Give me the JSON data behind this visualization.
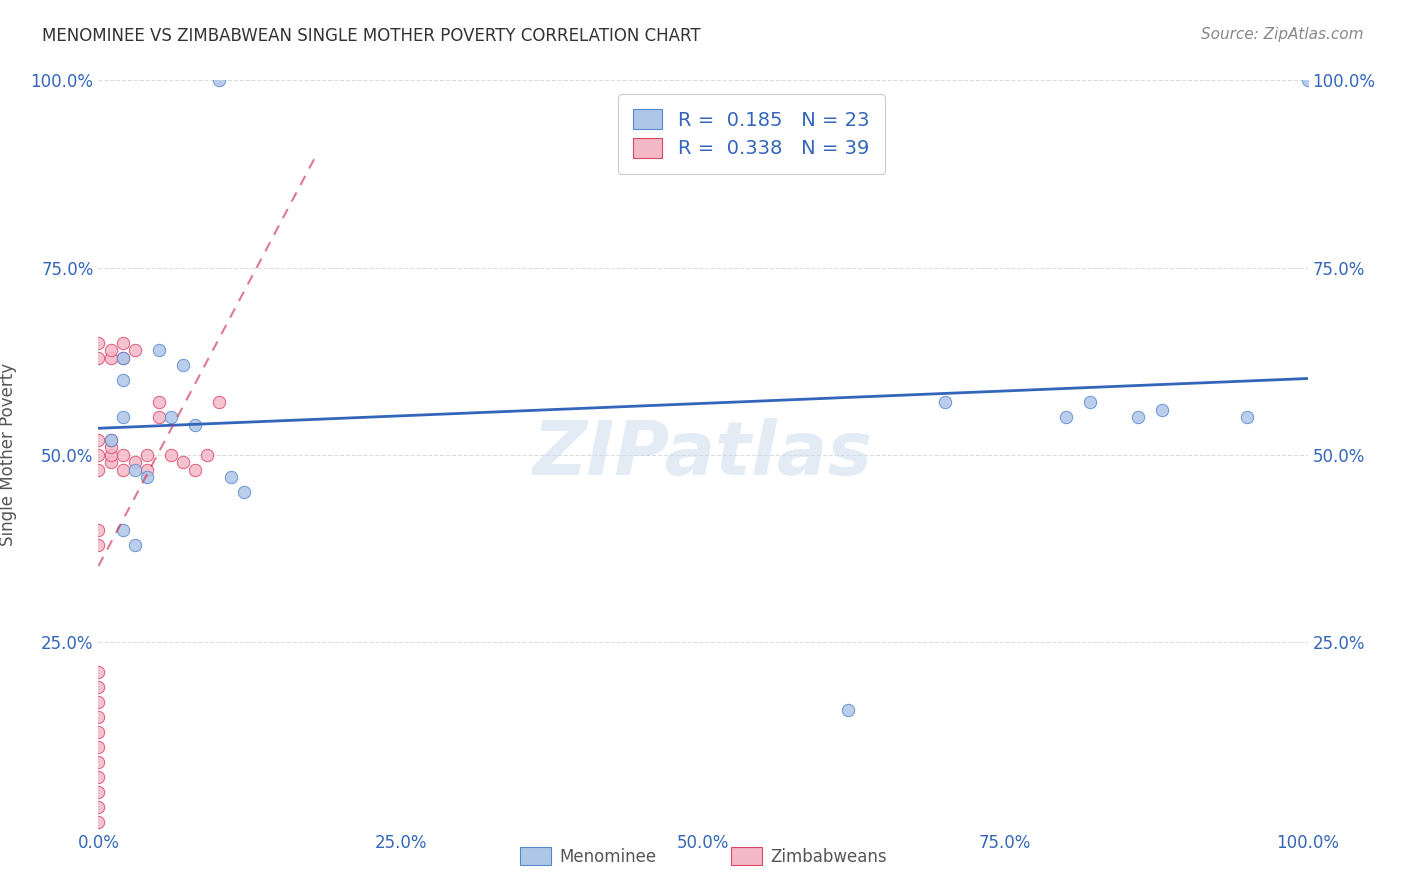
{
  "title": "MENOMINEE VS ZIMBABWEAN SINGLE MOTHER POVERTY CORRELATION CHART",
  "source": "Source: ZipAtlas.com",
  "ylabel": "Single Mother Poverty",
  "xlim": [
    0.0,
    1.0
  ],
  "ylim": [
    0.0,
    1.0
  ],
  "xticks": [
    0.0,
    0.25,
    0.5,
    0.75,
    1.0
  ],
  "xticklabels": [
    "0.0%",
    "25.0%",
    "50.0%",
    "75.0%",
    "100.0%"
  ],
  "yticks": [
    0.25,
    0.5,
    0.75,
    1.0
  ],
  "yticklabels": [
    "25.0%",
    "50.0%",
    "75.0%",
    "100.0%"
  ],
  "watermark": "ZIPatlas",
  "menominee_color": "#aec6e8",
  "zimbabwean_color": "#f4b8c8",
  "menominee_edge_color": "#5588cc",
  "zimbabwean_edge_color": "#dd4466",
  "menominee_line_color": "#3366bb",
  "zimbabwean_line_color": "#cc3355",
  "menominee_R": 0.185,
  "menominee_N": 23,
  "zimbabwean_R": 0.338,
  "zimbabwean_N": 39,
  "menominee_x": [
    0.01,
    0.02,
    0.02,
    0.02,
    0.02,
    0.03,
    0.03,
    0.04,
    0.05,
    0.06,
    0.07,
    0.08,
    0.1,
    0.11,
    0.12,
    0.62,
    0.7,
    0.8,
    0.82,
    0.86,
    0.88,
    0.95,
    1.0
  ],
  "menominee_y": [
    0.52,
    0.63,
    0.6,
    0.55,
    0.4,
    0.48,
    0.38,
    0.47,
    0.64,
    0.55,
    0.62,
    0.54,
    1.0,
    0.47,
    0.45,
    0.16,
    0.57,
    0.55,
    0.57,
    0.55,
    0.56,
    0.55,
    1.0
  ],
  "zimbabwean_x": [
    0.0,
    0.0,
    0.0,
    0.0,
    0.0,
    0.0,
    0.0,
    0.0,
    0.0,
    0.0,
    0.0,
    0.0,
    0.0,
    0.0,
    0.0,
    0.0,
    0.0,
    0.0,
    0.01,
    0.01,
    0.01,
    0.01,
    0.01,
    0.01,
    0.02,
    0.02,
    0.02,
    0.02,
    0.03,
    0.03,
    0.04,
    0.04,
    0.05,
    0.05,
    0.06,
    0.07,
    0.08,
    0.09,
    0.1
  ],
  "zimbabwean_y": [
    0.01,
    0.03,
    0.05,
    0.07,
    0.09,
    0.11,
    0.13,
    0.15,
    0.17,
    0.19,
    0.21,
    0.38,
    0.4,
    0.48,
    0.5,
    0.52,
    0.63,
    0.65,
    0.49,
    0.5,
    0.51,
    0.52,
    0.63,
    0.64,
    0.48,
    0.5,
    0.63,
    0.65,
    0.49,
    0.64,
    0.48,
    0.5,
    0.55,
    0.57,
    0.5,
    0.49,
    0.48,
    0.5,
    0.57
  ],
  "legend_color": "#3366bb",
  "grid_color": "#dddddd",
  "background_color": "#ffffff",
  "tick_color": "#3366bb",
  "title_color": "#333333",
  "marker_size": 80
}
